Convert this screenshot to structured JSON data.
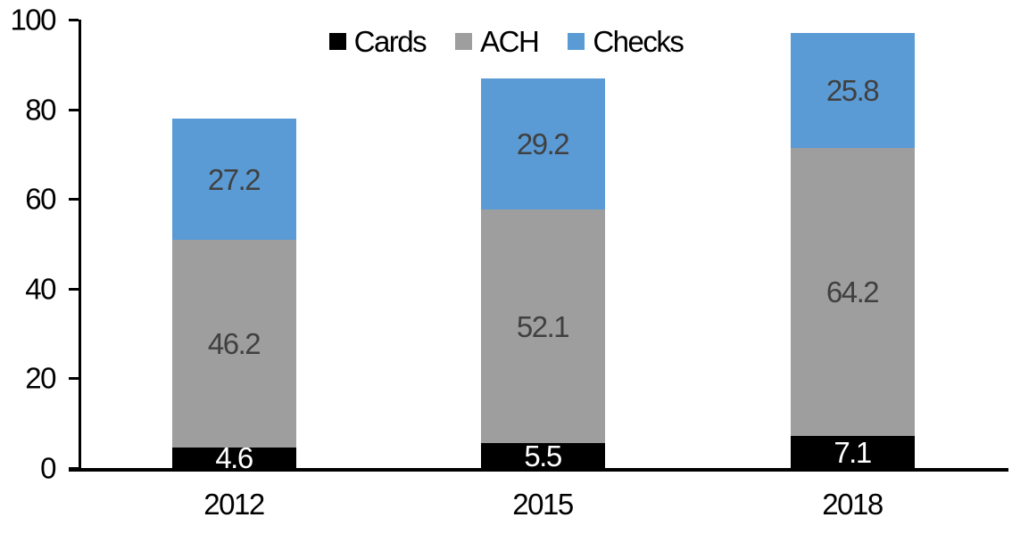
{
  "chart_data": {
    "type": "bar",
    "stacked": true,
    "categories": [
      "2012",
      "2015",
      "2018"
    ],
    "series": [
      {
        "name": "Cards",
        "color": "#000000",
        "label_color": "#ffffff",
        "values": [
          4.6,
          5.5,
          7.1
        ]
      },
      {
        "name": "ACH",
        "color": "#9E9E9E",
        "label_color": "#404040",
        "values": [
          46.2,
          52.1,
          64.2
        ]
      },
      {
        "name": "Checks",
        "color": "#5B9BD5",
        "label_color": "#404040",
        "values": [
          27.2,
          29.2,
          25.8
        ]
      }
    ],
    "totals": [
      78.0,
      86.8,
      97.1
    ],
    "title": "",
    "xlabel": "",
    "ylabel": "",
    "ylim": [
      0,
      100
    ],
    "yticks": [
      0,
      20,
      40,
      60,
      80,
      100
    ],
    "grid": false,
    "data_labels": true,
    "legend_position": "top-center",
    "axis_color": "#000000",
    "background_color": "#ffffff"
  }
}
